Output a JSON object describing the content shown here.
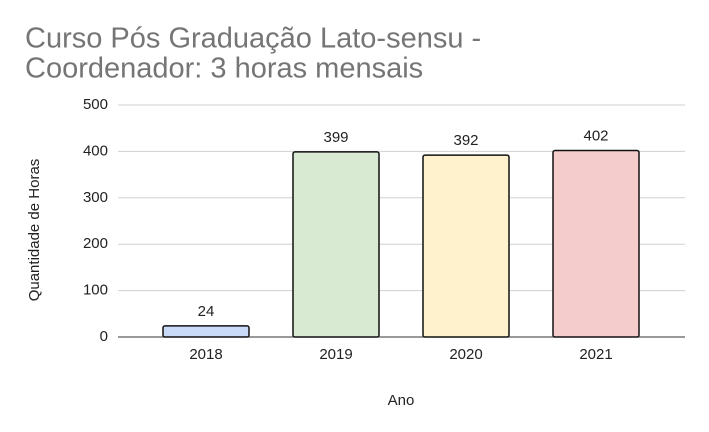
{
  "chart_data": {
    "type": "bar",
    "title": [
      "Curso Pós Graduação Lato-sensu -",
      "Coordenador: 3 horas mensais"
    ],
    "x_label": "Ano",
    "y_label": "Quantidade de Horas",
    "categories": [
      "2018",
      "2019",
      "2020",
      "2021"
    ],
    "values": [
      24,
      399,
      392,
      402
    ],
    "colors": [
      "#c9daf8",
      "#d9ead3",
      "#fff2cc",
      "#f4cccc"
    ],
    "ylim": [
      0,
      500
    ],
    "yticks": [
      0,
      100,
      200,
      300,
      400,
      500
    ],
    "grid": true
  }
}
